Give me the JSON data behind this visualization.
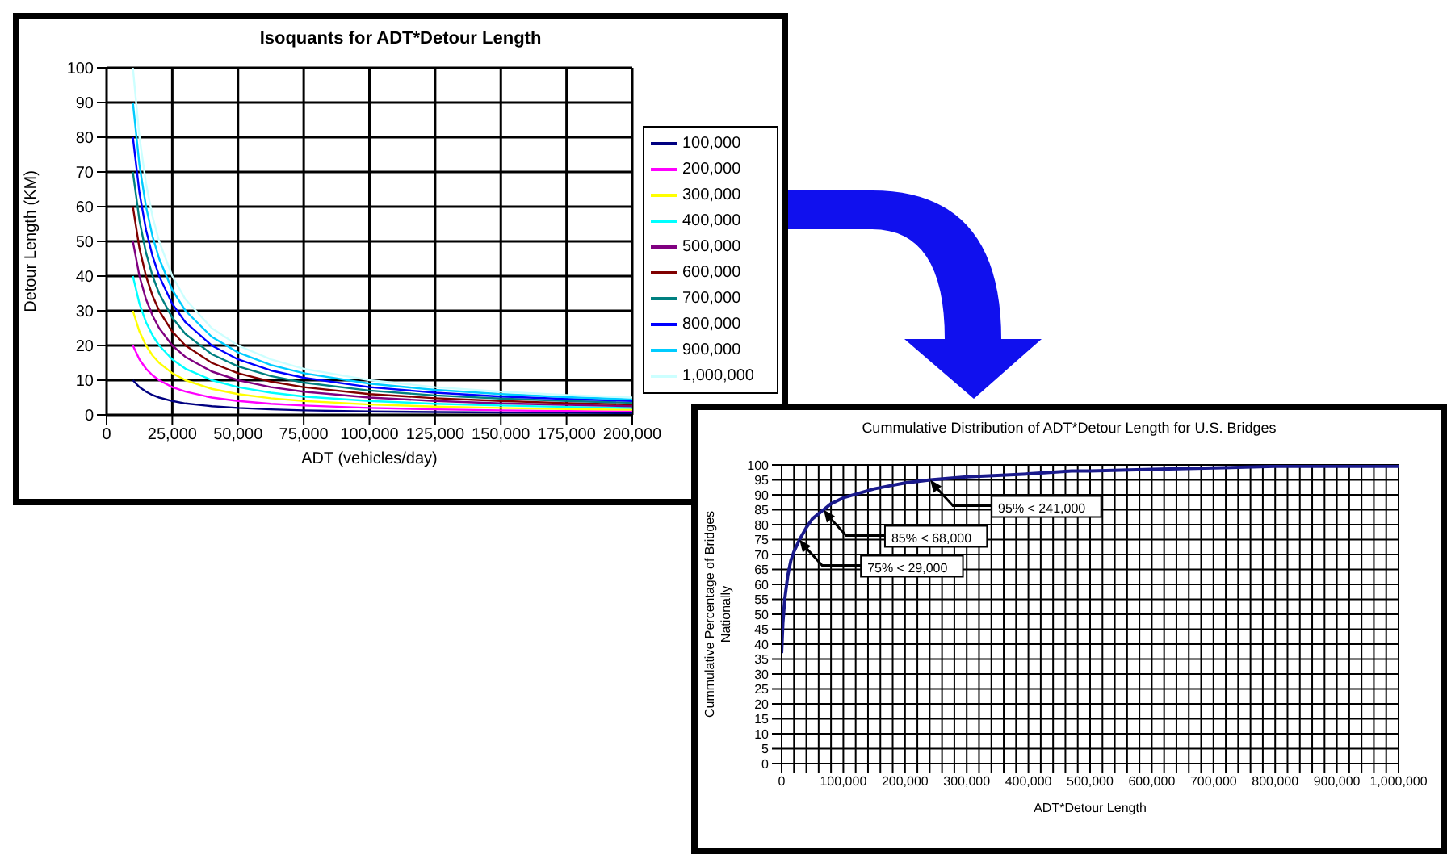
{
  "chart_data": [
    {
      "type": "line",
      "title": "Isoquants for ADT*Detour Length",
      "xlabel": "ADT (vehicles/day)",
      "ylabel": "Detour Length (KM)",
      "x": [
        10000,
        12500,
        15000,
        17500,
        20000,
        25000,
        30000,
        40000,
        50000,
        62500,
        75000,
        100000,
        125000,
        150000,
        175000,
        200000
      ],
      "series": [
        {
          "name": "100,000",
          "color": "#000080",
          "values": [
            10,
            8,
            6.7,
            5.7,
            5,
            4,
            3.3,
            2.5,
            2,
            1.6,
            1.3,
            1,
            0.8,
            0.7,
            0.6,
            0.5
          ]
        },
        {
          "name": "200,000",
          "color": "#ff00ff",
          "values": [
            20,
            16,
            13.3,
            11.4,
            10,
            8,
            6.7,
            5,
            4,
            3.2,
            2.7,
            2,
            1.6,
            1.3,
            1.1,
            1
          ]
        },
        {
          "name": "300,000",
          "color": "#ffff00",
          "values": [
            30,
            24,
            20,
            17.1,
            15,
            12,
            10,
            7.5,
            6,
            4.8,
            4,
            3,
            2.4,
            2,
            1.7,
            1.5
          ]
        },
        {
          "name": "400,000",
          "color": "#00ffff",
          "values": [
            40,
            32,
            26.7,
            22.9,
            20,
            16,
            13.3,
            10,
            8,
            6.4,
            5.3,
            4,
            3.2,
            2.7,
            2.3,
            2
          ]
        },
        {
          "name": "500,000",
          "color": "#800080",
          "values": [
            50,
            40,
            33.3,
            28.6,
            25,
            20,
            16.7,
            12.5,
            10,
            8,
            6.7,
            5,
            4,
            3.3,
            2.9,
            2.5
          ]
        },
        {
          "name": "600,000",
          "color": "#800000",
          "values": [
            60,
            48,
            40,
            34.3,
            30,
            24,
            20,
            15,
            12,
            9.6,
            8,
            6,
            4.8,
            4,
            3.4,
            3
          ]
        },
        {
          "name": "700,000",
          "color": "#008080",
          "values": [
            70,
            56,
            46.7,
            40,
            35,
            28,
            23.3,
            17.5,
            14,
            11.2,
            9.3,
            7,
            5.6,
            4.7,
            4,
            3.5
          ]
        },
        {
          "name": "800,000",
          "color": "#0000ff",
          "values": [
            80,
            64,
            53.3,
            45.7,
            40,
            32,
            26.7,
            20,
            16,
            12.8,
            10.7,
            8,
            6.4,
            5.3,
            4.6,
            4
          ]
        },
        {
          "name": "900,000",
          "color": "#00ccff",
          "values": [
            90,
            72,
            60,
            51.4,
            45,
            36,
            30,
            22.5,
            18,
            14.4,
            12,
            9,
            7.2,
            6,
            5.1,
            4.5
          ]
        },
        {
          "name": "1,000,000",
          "color": "#ccffff",
          "values": [
            100,
            80,
            66.7,
            57.1,
            50,
            40,
            33.3,
            25,
            20,
            16,
            13.3,
            10,
            8,
            6.7,
            5.7,
            5
          ]
        }
      ],
      "xlim": [
        0,
        200000
      ],
      "xticks": [
        0,
        {
          "value": 25000,
          "label": "25,000"
        },
        {
          "value": 50000,
          "label": "50,000"
        },
        {
          "value": 75000,
          "label": "75,000"
        },
        {
          "value": 100000,
          "label": "100,000"
        },
        {
          "value": 125000,
          "label": "125,000"
        },
        {
          "value": 150000,
          "label": "150,000"
        },
        {
          "value": 175000,
          "label": "175,000"
        },
        {
          "value": 200000,
          "label": "200,000"
        }
      ],
      "ylim": [
        0,
        100
      ],
      "yticks": [
        0,
        10,
        20,
        30,
        40,
        50,
        60,
        70,
        80,
        90,
        100
      ],
      "grid": true,
      "legend": "right",
      "marker": "none"
    },
    {
      "type": "line",
      "title": "Cummulative Distribution of ADT*Detour Length for U.S. Bridges",
      "xlabel": "ADT*Detour Length",
      "ylabel": "Cummulative Percentage of Bridges Nationally",
      "x": [
        0,
        2000,
        5000,
        10000,
        15000,
        20000,
        29000,
        40000,
        50000,
        68000,
        80000,
        100000,
        125000,
        150000,
        175000,
        200000,
        241000,
        300000,
        350000,
        400000,
        470000,
        500000,
        600000,
        700000,
        800000,
        900000,
        1000000
      ],
      "series": [
        {
          "color": "#1a1a8c",
          "values": [
            37,
            47,
            55,
            63,
            68,
            71,
            75,
            79,
            82,
            85,
            87,
            89,
            90.5,
            92,
            93,
            94,
            95,
            96,
            96.5,
            97,
            98,
            98,
            98.5,
            99,
            99.5,
            99.5,
            99.5
          ]
        }
      ],
      "xlim": [
        0,
        1000000
      ],
      "xticks": [
        0,
        {
          "value": 20000,
          "label": null
        },
        {
          "value": 40000,
          "label": null
        },
        {
          "value": 60000,
          "label": null
        },
        {
          "value": 80000,
          "label": null
        },
        {
          "value": 100000,
          "label": "100,000"
        },
        {
          "value": 120000,
          "label": null
        },
        {
          "value": 140000,
          "label": null
        },
        {
          "value": 160000,
          "label": null
        },
        {
          "value": 180000,
          "label": null
        },
        {
          "value": 200000,
          "label": "200,000"
        },
        {
          "value": 220000,
          "label": null
        },
        {
          "value": 240000,
          "label": null
        },
        {
          "value": 260000,
          "label": null
        },
        {
          "value": 280000,
          "label": null
        },
        {
          "value": 300000,
          "label": "300,000"
        },
        {
          "value": 320000,
          "label": null
        },
        {
          "value": 340000,
          "label": null
        },
        {
          "value": 360000,
          "label": null
        },
        {
          "value": 380000,
          "label": null
        },
        {
          "value": 400000,
          "label": "400,000"
        },
        {
          "value": 420000,
          "label": null
        },
        {
          "value": 440000,
          "label": null
        },
        {
          "value": 460000,
          "label": null
        },
        {
          "value": 480000,
          "label": null
        },
        {
          "value": 500000,
          "label": "500,000"
        },
        {
          "value": 520000,
          "label": null
        },
        {
          "value": 540000,
          "label": null
        },
        {
          "value": 560000,
          "label": null
        },
        {
          "value": 580000,
          "label": null
        },
        {
          "value": 600000,
          "label": "600,000"
        },
        {
          "value": 620000,
          "label": null
        },
        {
          "value": 640000,
          "label": null
        },
        {
          "value": 660000,
          "label": null
        },
        {
          "value": 680000,
          "label": null
        },
        {
          "value": 700000,
          "label": "700,000"
        },
        {
          "value": 720000,
          "label": null
        },
        {
          "value": 740000,
          "label": null
        },
        {
          "value": 760000,
          "label": null
        },
        {
          "value": 780000,
          "label": null
        },
        {
          "value": 800000,
          "label": "800,000"
        },
        {
          "value": 820000,
          "label": null
        },
        {
          "value": 840000,
          "label": null
        },
        {
          "value": 860000,
          "label": null
        },
        {
          "value": 880000,
          "label": null
        },
        {
          "value": 900000,
          "label": "900,000"
        },
        {
          "value": 920000,
          "label": null
        },
        {
          "value": 940000,
          "label": null
        },
        {
          "value": 960000,
          "label": null
        },
        {
          "value": 980000,
          "label": null
        },
        {
          "value": 1000000,
          "label": "1,000,000"
        }
      ],
      "ylim": [
        0,
        100
      ],
      "yticks": [
        0,
        5,
        10,
        15,
        20,
        25,
        30,
        35,
        40,
        45,
        50,
        55,
        60,
        65,
        70,
        75,
        80,
        85,
        90,
        95,
        100
      ],
      "grid": true,
      "marker": "none",
      "annotations": [
        {
          "text": "75% < 29,000",
          "x": 29000,
          "y": 75
        },
        {
          "text": "85% < 68,000",
          "x": 68000,
          "y": 85
        },
        {
          "text": "95% < 241,000",
          "x": 241000,
          "y": 95
        }
      ]
    }
  ]
}
